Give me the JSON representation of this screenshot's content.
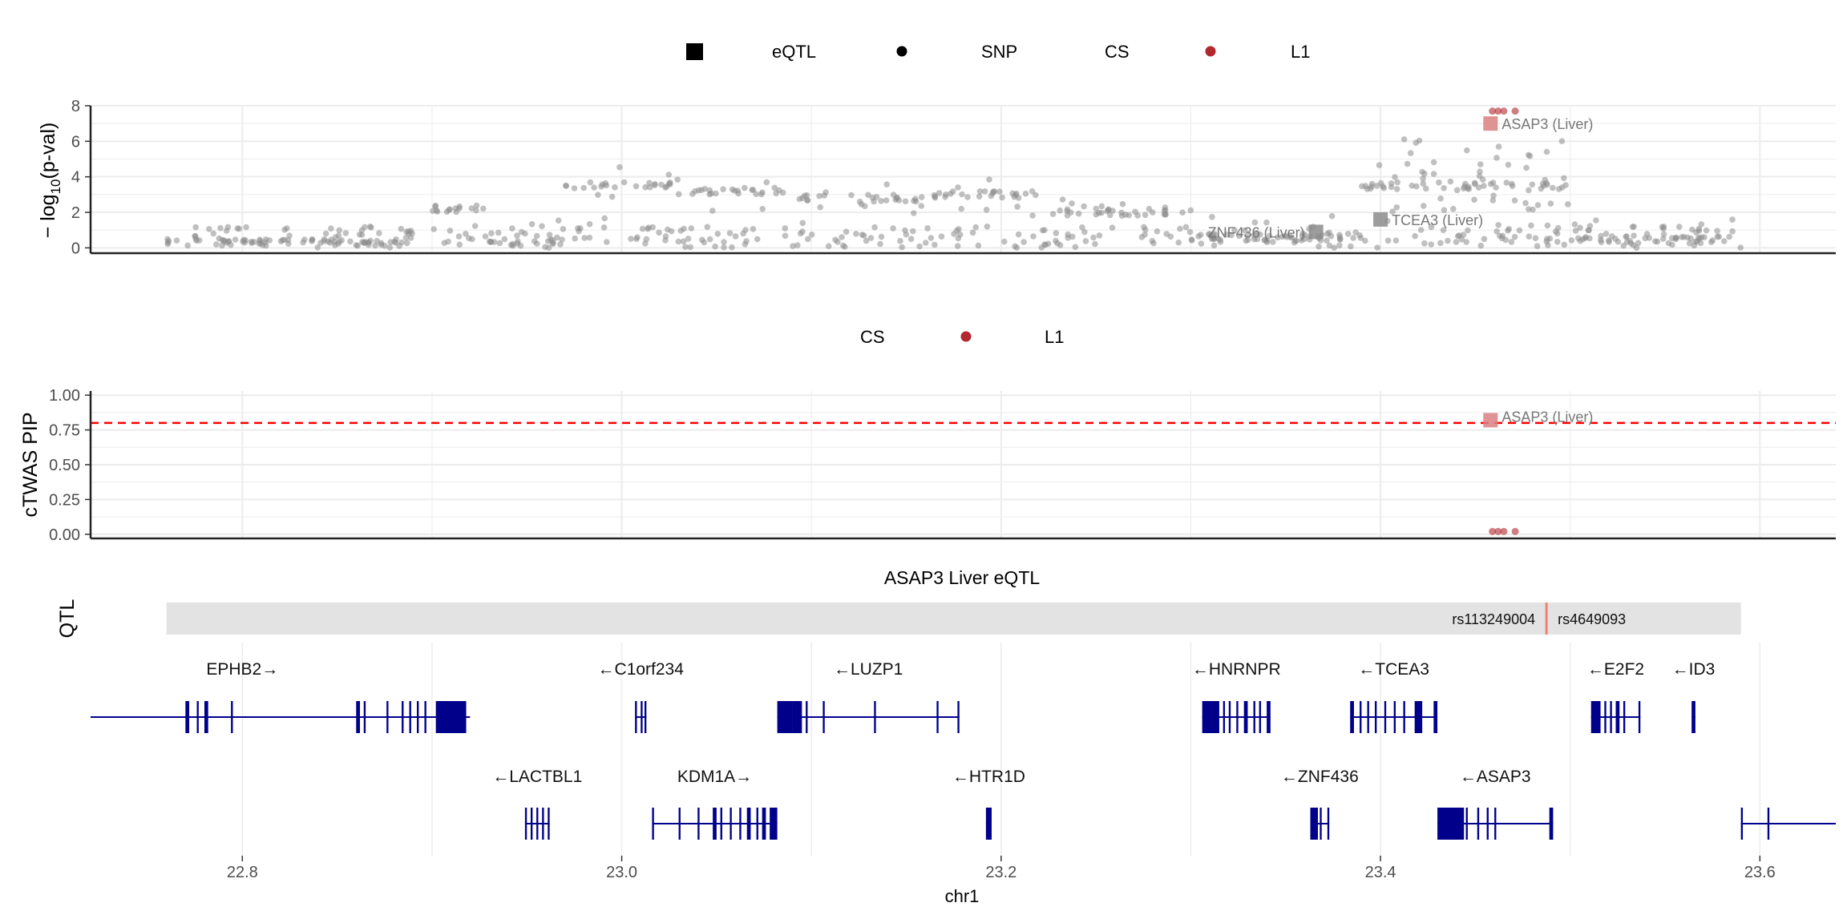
{
  "chart_data": [
    {
      "type": "scatter",
      "name": "gwas-panel",
      "ylabel_prefix": "− log",
      "ylabel_sub": "10",
      "ylabel_suffix": "(p-val)",
      "xlim": [
        22.72,
        23.64
      ],
      "ylim": [
        -0.3,
        8
      ],
      "yticks": [
        0,
        2,
        4,
        6,
        8
      ],
      "legend": {
        "eqtl": "eQTL",
        "snp": "SNP",
        "cs": "CS",
        "l1": "L1"
      },
      "colors": {
        "snp": "#8c8c8c",
        "cs": "#b2282e",
        "eqtl_cs": "#d98080",
        "eqtl": "#8c8c8c"
      },
      "snp_segments": [
        {
          "x0": 22.76,
          "x1": 22.89,
          "level": 0.3
        },
        {
          "x0": 22.9,
          "x1": 22.93,
          "level": 2.2
        },
        {
          "x0": 22.93,
          "x1": 22.97,
          "level": 0.4
        },
        {
          "x0": 22.97,
          "x1": 23.03,
          "level": 3.5
        },
        {
          "x0": 23.03,
          "x1": 23.09,
          "level": 3.2
        },
        {
          "x0": 23.09,
          "x1": 23.16,
          "level": 2.8
        },
        {
          "x0": 23.16,
          "x1": 23.22,
          "level": 3.0
        },
        {
          "x0": 23.22,
          "x1": 23.3,
          "level": 2.0
        },
        {
          "x0": 23.3,
          "x1": 23.39,
          "level": 0.6
        },
        {
          "x0": 23.39,
          "x1": 23.5,
          "level": 3.5
        },
        {
          "x0": 23.5,
          "x1": 23.59,
          "level": 0.5
        }
      ],
      "cs_points": [
        [
          23.459,
          7.7
        ],
        [
          23.462,
          7.7
        ],
        [
          23.465,
          7.7
        ],
        [
          23.471,
          7.7
        ]
      ],
      "eqtl_points": [
        {
          "x": 23.458,
          "y": 7.0,
          "label": "ASAP3 (Liver)",
          "in_cs": true
        },
        {
          "x": 23.4,
          "y": 1.6,
          "label": "TCEA3 (Liver)",
          "in_cs": false
        },
        {
          "x": 23.366,
          "y": 0.9,
          "label": "ZNF436 (Liver)",
          "in_cs": false
        }
      ]
    },
    {
      "type": "scatter",
      "name": "pip-panel",
      "ylabel": "cTWAS PIP",
      "xlim": [
        22.72,
        23.64
      ],
      "ylim": [
        -0.03,
        1.03
      ],
      "yticks": [
        "0.00",
        "0.25",
        "0.50",
        "0.75",
        "1.00"
      ],
      "threshold": 0.8,
      "legend": {
        "cs": "CS",
        "l1": "L1"
      },
      "cs_points": [
        [
          23.459,
          0.02
        ],
        [
          23.462,
          0.02
        ],
        [
          23.465,
          0.02
        ],
        [
          23.471,
          0.02
        ]
      ],
      "eqtl_points": [
        {
          "x": 23.458,
          "y": 0.82,
          "label": "ASAP3 (Liver)",
          "in_cs": true
        }
      ]
    },
    {
      "type": "track",
      "name": "qtl-track",
      "title": "ASAP3 Liver eQTL",
      "ylabel": "QTL",
      "range": [
        22.76,
        23.59
      ],
      "snp_x": 23.4875,
      "left_label": "rs113249004",
      "right_label": "rs4649093"
    },
    {
      "type": "gene-track",
      "name": "gene-track",
      "xlabel": "chr1",
      "xlim": [
        22.72,
        23.64
      ],
      "xticks": [
        "22.8",
        "23.0",
        "23.2",
        "23.4",
        "23.6"
      ],
      "genes": [
        {
          "label": "EPHB2→",
          "start": 22.72,
          "end": 22.92,
          "row": 0,
          "exons": [
            [
              22.77,
              22.772
            ],
            [
              22.776,
              22.777
            ],
            [
              22.78,
              22.782
            ],
            [
              22.794,
              22.795
            ],
            [
              22.86,
              22.862
            ],
            [
              22.864,
              22.865
            ],
            [
              22.876,
              22.877
            ],
            [
              22.884,
              22.885
            ],
            [
              22.888,
              22.889
            ],
            [
              22.892,
              22.893
            ],
            [
              22.896,
              22.897
            ],
            [
              22.902,
              22.918
            ]
          ]
        },
        {
          "label": "←C1orf234",
          "start": 23.007,
          "end": 23.013,
          "row": 0,
          "exons": [
            [
              23.007,
              23.008
            ],
            [
              23.01,
              23.011
            ],
            [
              23.012,
              23.013
            ]
          ]
        },
        {
          "label": "←LUZP1",
          "start": 23.082,
          "end": 23.178,
          "row": 0,
          "exons": [
            [
              23.082,
              23.09
            ],
            [
              23.09,
              23.095
            ],
            [
              23.097,
              23.098
            ],
            [
              23.106,
              23.107
            ],
            [
              23.133,
              23.134
            ],
            [
              23.166,
              23.167
            ],
            [
              23.177,
              23.178
            ]
          ]
        },
        {
          "label": "←HNRNPR",
          "start": 23.306,
          "end": 23.342,
          "row": 0,
          "exons": [
            [
              23.306,
              23.315
            ],
            [
              23.317,
              23.318
            ],
            [
              23.32,
              23.321
            ],
            [
              23.324,
              23.325
            ],
            [
              23.328,
              23.33
            ],
            [
              23.333,
              23.334
            ],
            [
              23.336,
              23.337
            ],
            [
              23.34,
              23.342
            ]
          ]
        },
        {
          "label": "←TCEA3",
          "start": 23.384,
          "end": 23.43,
          "row": 0,
          "exons": [
            [
              23.384,
              23.386
            ],
            [
              23.389,
              23.39
            ],
            [
              23.393,
              23.394
            ],
            [
              23.397,
              23.398
            ],
            [
              23.402,
              23.403
            ],
            [
              23.407,
              23.408
            ],
            [
              23.412,
              23.413
            ],
            [
              23.418,
              23.422
            ],
            [
              23.428,
              23.43
            ]
          ]
        },
        {
          "label": "←E2F2",
          "start": 23.511,
          "end": 23.537,
          "row": 0,
          "exons": [
            [
              23.511,
              23.516
            ],
            [
              23.518,
              23.519
            ],
            [
              23.521,
              23.522
            ],
            [
              23.524,
              23.526
            ],
            [
              23.528,
              23.529
            ],
            [
              23.536,
              23.537
            ]
          ]
        },
        {
          "label": "←ID3",
          "start": 23.564,
          "end": 23.566,
          "row": 0,
          "exons": [
            [
              23.564,
              23.566
            ]
          ]
        },
        {
          "label": "←LACTBL1",
          "start": 22.949,
          "end": 22.962,
          "row": 1,
          "exons": [
            [
              22.949,
              22.95
            ],
            [
              22.952,
              22.953
            ],
            [
              22.955,
              22.956
            ],
            [
              22.958,
              22.959
            ],
            [
              22.961,
              22.962
            ]
          ]
        },
        {
          "label": "KDM1A→",
          "start": 23.016,
          "end": 23.082,
          "row": 1,
          "exons": [
            [
              23.016,
              23.017
            ],
            [
              23.03,
              23.031
            ],
            [
              23.04,
              23.041
            ],
            [
              23.048,
              23.05
            ],
            [
              23.052,
              23.053
            ],
            [
              23.057,
              23.058
            ],
            [
              23.062,
              23.063
            ],
            [
              23.066,
              23.068
            ],
            [
              23.071,
              23.072
            ],
            [
              23.074,
              23.076
            ],
            [
              23.078,
              23.082
            ]
          ]
        },
        {
          "label": "←HTR1D",
          "start": 23.192,
          "end": 23.195,
          "row": 1,
          "exons": [
            [
              23.192,
              23.195
            ]
          ]
        },
        {
          "label": "←ZNF436",
          "start": 23.363,
          "end": 23.373,
          "row": 1,
          "exons": [
            [
              23.363,
              23.367
            ],
            [
              23.368,
              23.369
            ],
            [
              23.372,
              23.373
            ]
          ]
        },
        {
          "label": "←ASAP3",
          "start": 23.43,
          "end": 23.491,
          "row": 1,
          "exons": [
            [
              23.43,
              23.444
            ],
            [
              23.445,
              23.446
            ],
            [
              23.451,
              23.452
            ],
            [
              23.456,
              23.457
            ],
            [
              23.46,
              23.461
            ],
            [
              23.489,
              23.491
            ]
          ]
        },
        {
          "label": "",
          "start": 23.59,
          "end": 23.64,
          "row": 1,
          "exons": [
            [
              23.59,
              23.591
            ],
            [
              23.604,
              23.605
            ]
          ]
        }
      ]
    }
  ]
}
